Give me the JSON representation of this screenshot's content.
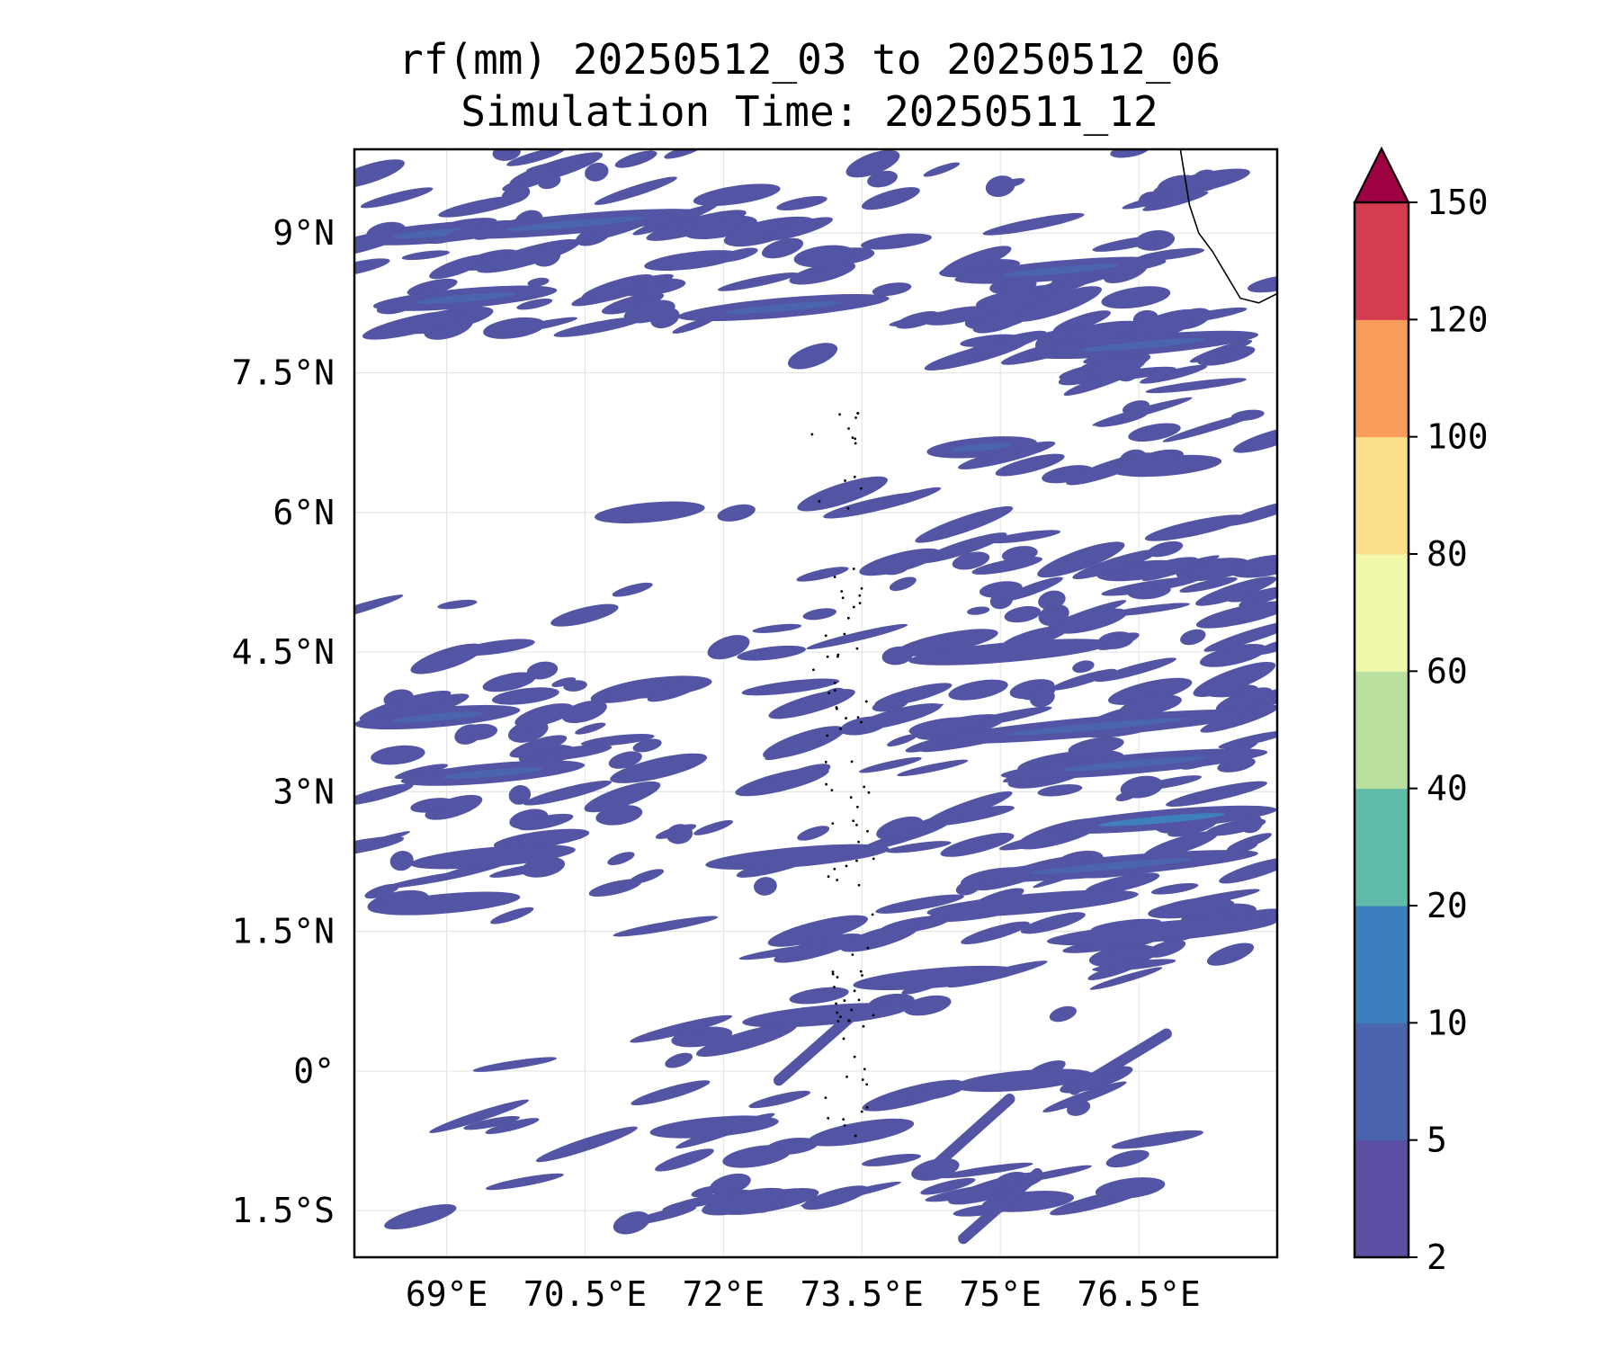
{
  "title": {
    "line1": "rf(mm) 20250512_03 to 20250512_06",
    "line2": "Simulation Time: 20250511_12"
  },
  "map": {
    "lon_range": [
      68.0,
      78.0
    ],
    "lat_range": [
      -2.0,
      9.9
    ],
    "gridlines": true,
    "lon_ticks": [
      {
        "value": 69.0,
        "label": "69°E"
      },
      {
        "value": 70.5,
        "label": "70.5°E"
      },
      {
        "value": 72.0,
        "label": "72°E"
      },
      {
        "value": 73.5,
        "label": "73.5°E"
      },
      {
        "value": 75.0,
        "label": "75°E"
      },
      {
        "value": 76.5,
        "label": "76.5°E"
      }
    ],
    "lat_ticks": [
      {
        "value": 9.0,
        "label": "9°N"
      },
      {
        "value": 7.5,
        "label": "7.5°N"
      },
      {
        "value": 6.0,
        "label": "6°N"
      },
      {
        "value": 4.5,
        "label": "4.5°N"
      },
      {
        "value": 3.0,
        "label": "3°N"
      },
      {
        "value": 1.5,
        "label": "1.5°N"
      },
      {
        "value": 0.0,
        "label": "0°"
      },
      {
        "value": -1.5,
        "label": "1.5°S"
      }
    ],
    "rain_color": "#5354a3",
    "rain_color_moderate": "#3f7fba",
    "coastline_color": "#000000"
  },
  "colorbar": {
    "levels": [
      2,
      5,
      10,
      20,
      40,
      60,
      80,
      100,
      120,
      150
    ],
    "tick_labels": [
      "2",
      "5",
      "10",
      "20",
      "40",
      "60",
      "80",
      "100",
      "120",
      "150"
    ],
    "colors": [
      "#5a4fa2",
      "#4a64ae",
      "#3a7ebb",
      "#60bba9",
      "#b9e09f",
      "#f1f8a9",
      "#fbdf8b",
      "#f99d5b",
      "#d43d4f"
    ],
    "extend_color": "#9e0142",
    "extend": "max"
  },
  "chart_data": {
    "type": "heatmap",
    "title": "rf(mm) 20250512_03 to 20250512_06",
    "subtitle": "Simulation Time: 20250511_12",
    "units": "mm",
    "xlim": [
      68.0,
      78.0
    ],
    "ylim": [
      -2.0,
      9.9
    ],
    "rain_bands": [
      {
        "lon": [
          68.0,
          69.8
        ],
        "lat": 9.0,
        "level": "5-10"
      },
      {
        "lon": [
          69.0,
          71.8
        ],
        "lat": 9.1,
        "level": "5-10"
      },
      {
        "lon": [
          68.2,
          70.2
        ],
        "lat": 8.3,
        "level": "5-10"
      },
      {
        "lon": [
          71.5,
          73.8
        ],
        "lat": 8.2,
        "level": "5-10"
      },
      {
        "lon": [
          74.5,
          76.8
        ],
        "lat": 8.6,
        "level": "5-10"
      },
      {
        "lon": [
          75.3,
          77.8
        ],
        "lat": 7.8,
        "level": "5-10"
      },
      {
        "lon": [
          70.6,
          71.8
        ],
        "lat": 6.0,
        "level": "2-5"
      },
      {
        "lon": [
          74.2,
          75.4
        ],
        "lat": 6.7,
        "level": "5-10"
      },
      {
        "lon": [
          76.2,
          77.4
        ],
        "lat": 6.5,
        "level": "2-5"
      },
      {
        "lon": [
          68.0,
          69.8
        ],
        "lat": 3.8,
        "level": "5-10"
      },
      {
        "lon": [
          68.5,
          70.5
        ],
        "lat": 3.2,
        "level": "5-10"
      },
      {
        "lon": [
          68.6,
          70.4
        ],
        "lat": 2.3,
        "level": "2-5"
      },
      {
        "lon": [
          68.2,
          69.8
        ],
        "lat": 1.8,
        "level": "2-5"
      },
      {
        "lon": [
          71.8,
          73.8
        ],
        "lat": 2.3,
        "level": "2-5"
      },
      {
        "lon": [
          74.0,
          76.2
        ],
        "lat": 4.5,
        "level": "2-5"
      },
      {
        "lon": [
          74.3,
          77.8
        ],
        "lat": 3.7,
        "level": "5-10"
      },
      {
        "lon": [
          75.0,
          77.9
        ],
        "lat": 3.3,
        "level": "5-10"
      },
      {
        "lon": [
          75.5,
          78.0
        ],
        "lat": 2.7,
        "level": "10-20"
      },
      {
        "lon": [
          74.6,
          77.8
        ],
        "lat": 2.2,
        "level": "5-10"
      },
      {
        "lon": [
          74.2,
          76.5
        ],
        "lat": 1.8,
        "level": "2-5"
      },
      {
        "lon": [
          75.5,
          78.0
        ],
        "lat": 1.5,
        "level": "2-5"
      },
      {
        "lon": [
          73.4,
          75.2
        ],
        "lat": 1.0,
        "level": "2-5"
      },
      {
        "lon": [
          72.2,
          74.0
        ],
        "lat": 0.6,
        "level": "2-5"
      },
      {
        "lon": [
          71.2,
          72.6
        ],
        "lat": -0.6,
        "level": "2-5"
      },
      {
        "lon": [
          74.5,
          76.0
        ],
        "lat": -0.1,
        "level": "2-5"
      },
      {
        "lon": [
          74.8,
          75.8
        ],
        "lat": -1.4,
        "level": "2-5"
      }
    ]
  }
}
